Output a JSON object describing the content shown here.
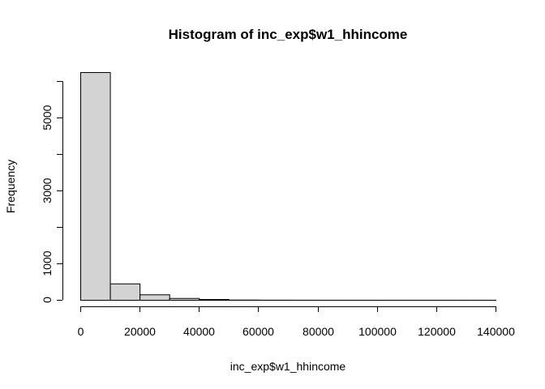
{
  "chart_data": {
    "type": "bar",
    "subtype": "histogram",
    "title": "Histogram of inc_exp$w1_hhincome",
    "xlabel": "inc_exp$w1_hhincome",
    "ylabel": "Frequency",
    "bin_edges": [
      0,
      10000,
      20000,
      30000,
      40000,
      50000,
      60000,
      70000,
      80000,
      90000,
      100000,
      110000,
      120000,
      130000,
      140000
    ],
    "values": [
      6250,
      450,
      150,
      50,
      20,
      5,
      3,
      2,
      1,
      1,
      1,
      1,
      1,
      1
    ],
    "xlim": [
      0,
      140000
    ],
    "ylim": [
      0,
      6250
    ],
    "x_ticks": [
      0,
      20000,
      40000,
      60000,
      80000,
      100000,
      120000,
      140000
    ],
    "x_tick_labels": [
      "0",
      "20000",
      "40000",
      "60000",
      "80000",
      "100000",
      "120000",
      "140000"
    ],
    "y_ticks": [
      0,
      1000,
      3000,
      5000
    ],
    "y_tick_labels": [
      "0",
      "1000",
      "3000",
      "5000"
    ],
    "bar_color": "#d3d3d3",
    "border_color": "#000000",
    "grid": false,
    "legend": "none"
  }
}
